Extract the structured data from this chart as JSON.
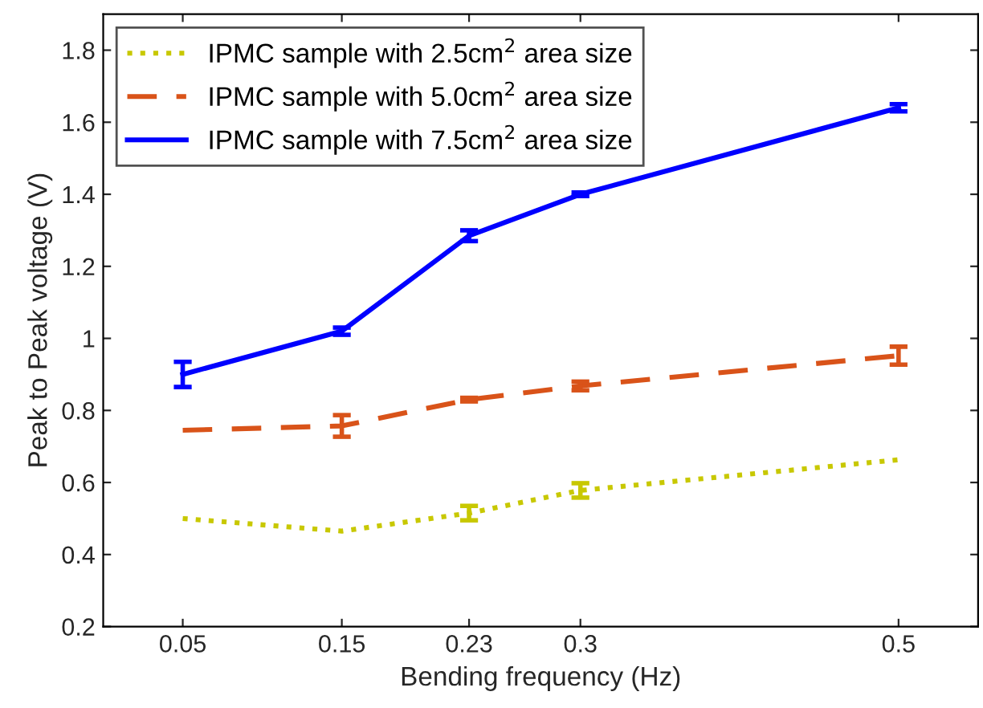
{
  "chart_data": {
    "type": "line",
    "xlabel": "Bending frequency (Hz)",
    "ylabel": "Peak to Peak voltage (V)",
    "x": [
      0.05,
      0.15,
      0.23,
      0.3,
      0.5
    ],
    "xlim": [
      0,
      0.55
    ],
    "xticks": [
      0.05,
      0.15,
      0.23,
      0.3,
      0.5
    ],
    "ylim": [
      0.2,
      1.9
    ],
    "yticks": [
      0.2,
      0.4,
      0.6,
      0.8,
      1,
      1.2,
      1.4,
      1.6,
      1.8
    ],
    "grid": false,
    "legend": "top left",
    "marker": "none",
    "series": [
      {
        "name": "IPMC sample with 2.5cm$^{2}$ area size",
        "color": "#c8c800",
        "line_style": "dotted",
        "values": [
          0.5,
          0.465,
          0.515,
          0.578,
          0.663
        ],
        "errors": [
          null,
          null,
          0.02,
          0.02,
          null
        ]
      },
      {
        "name": "IPMC sample with 5.0cm$^{2}$ area size",
        "color": "#d95319",
        "line_style": "dashed",
        "values": [
          0.745,
          0.757,
          0.83,
          0.868,
          0.952
        ],
        "errors": [
          null,
          0.03,
          0.005,
          0.012,
          0.025
        ]
      },
      {
        "name": "IPMC sample with 7.5cm$^{2}$ area size",
        "color": "#0000ff",
        "line_style": "solid",
        "values": [
          0.9,
          1.02,
          1.285,
          1.4,
          1.64
        ],
        "errors": [
          0.035,
          0.01,
          0.015,
          0.005,
          0.01
        ]
      }
    ]
  }
}
